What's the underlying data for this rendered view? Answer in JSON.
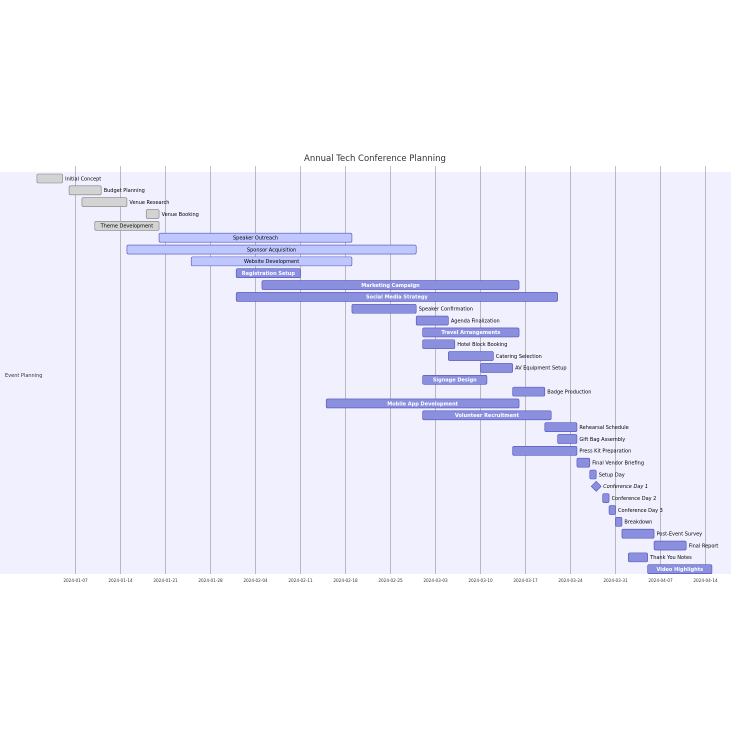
{
  "chart_data": {
    "type": "gantt",
    "title": "Annual Tech Conference Planning",
    "section": "Event Planning",
    "tick_labels": [
      "2024-01-07",
      "2024-01-14",
      "2024-01-21",
      "2024-01-28",
      "2024-02-04",
      "2024-02-11",
      "2024-02-18",
      "2024-02-25",
      "2024-03-03",
      "2024-03-10",
      "2024-03-17",
      "2024-03-24",
      "2024-03-31",
      "2024-04-07",
      "2024-04-14"
    ],
    "colors": {
      "done_fill": "#d3d3d3",
      "done_stroke": "#808080",
      "active_fill": "#bfc7ff",
      "active_stroke": "#534fbc",
      "task_fill": "#8a90dd",
      "task_stroke": "#534fbc",
      "crit_fill": "#8a90dd",
      "section_band": "#f0f0ff",
      "grid": "#808080",
      "inside_text_light": "#ffffff",
      "inside_text_dark": "#000000"
    },
    "tasks": [
      {
        "label": "Initial Concept",
        "start": "2024-01-01",
        "end": "2024-01-05",
        "status": "done"
      },
      {
        "label": "Budget Planning",
        "start": "2024-01-06",
        "end": "2024-01-11",
        "status": "done"
      },
      {
        "label": "Venue Research",
        "start": "2024-01-08",
        "end": "2024-01-15",
        "status": "done"
      },
      {
        "label": "Venue Booking",
        "start": "2024-01-18",
        "end": "2024-01-20",
        "status": "done"
      },
      {
        "label": "Theme Development",
        "start": "2024-01-10",
        "end": "2024-01-20",
        "status": "done"
      },
      {
        "label": "Speaker Outreach",
        "start": "2024-01-20",
        "end": "2024-02-19",
        "status": "active"
      },
      {
        "label": "Sponsor Acquisition",
        "start": "2024-01-15",
        "end": "2024-02-29",
        "status": "active"
      },
      {
        "label": "Website Development",
        "start": "2024-01-25",
        "end": "2024-02-19",
        "status": "active"
      },
      {
        "label": "Registration Setup",
        "start": "2024-02-01",
        "end": "2024-02-11",
        "status": "crit"
      },
      {
        "label": "Marketing Campaign",
        "start": "2024-02-05",
        "end": "2024-03-16",
        "status": "crit"
      },
      {
        "label": "Social Media Strategy",
        "start": "2024-02-01",
        "end": "2024-03-22",
        "status": "crit"
      },
      {
        "label": "Speaker Confirmation",
        "start": "2024-02-19",
        "end": "2024-02-29",
        "status": "crit"
      },
      {
        "label": "Agenda Finalization",
        "start": "2024-02-29",
        "end": "2024-03-05",
        "status": "task"
      },
      {
        "label": "Travel Arrangements",
        "start": "2024-03-01",
        "end": "2024-03-16",
        "status": "crit"
      },
      {
        "label": "Hotel Block Booking",
        "start": "2024-03-01",
        "end": "2024-03-06",
        "status": "task"
      },
      {
        "label": "Catering Selection",
        "start": "2024-03-05",
        "end": "2024-03-12",
        "status": "crit"
      },
      {
        "label": "AV Equipment Setup",
        "start": "2024-03-10",
        "end": "2024-03-15",
        "status": "task"
      },
      {
        "label": "Signage Design",
        "start": "2024-03-01",
        "end": "2024-03-11",
        "status": "crit"
      },
      {
        "label": "Badge Production",
        "start": "2024-03-15",
        "end": "2024-03-20",
        "status": "task"
      },
      {
        "label": "Mobile App Development",
        "start": "2024-02-15",
        "end": "2024-03-16",
        "status": "crit"
      },
      {
        "label": "Volunteer Recruitment",
        "start": "2024-03-01",
        "end": "2024-03-21",
        "status": "crit"
      },
      {
        "label": "Rehearsal Schedule",
        "start": "2024-03-20",
        "end": "2024-03-25",
        "status": "task"
      },
      {
        "label": "Gift Bag Assembly",
        "start": "2024-03-22",
        "end": "2024-03-25",
        "status": "task"
      },
      {
        "label": "Press Kit Preparation",
        "start": "2024-03-15",
        "end": "2024-03-25",
        "status": "crit"
      },
      {
        "label": "Final Vendor Briefing",
        "start": "2024-03-25",
        "end": "2024-03-27",
        "status": "task"
      },
      {
        "label": "Setup Day",
        "start": "2024-03-27",
        "end": "2024-03-28",
        "status": "task"
      },
      {
        "label": "Conference Day 1",
        "start": "2024-03-28",
        "end": "2024-03-28",
        "status": "milestone"
      },
      {
        "label": "Conference Day 2",
        "start": "2024-03-29",
        "end": "2024-03-30",
        "status": "task"
      },
      {
        "label": "Conference Day 3",
        "start": "2024-03-30",
        "end": "2024-03-31",
        "status": "task"
      },
      {
        "label": "Breakdown",
        "start": "2024-03-31",
        "end": "2024-04-01",
        "status": "task"
      },
      {
        "label": "Post-Event Survey",
        "start": "2024-04-01",
        "end": "2024-04-06",
        "status": "task"
      },
      {
        "label": "Final Report",
        "start": "2024-04-06",
        "end": "2024-04-11",
        "status": "crit"
      },
      {
        "label": "Thank You Notes",
        "start": "2024-04-02",
        "end": "2024-04-05",
        "status": "task"
      },
      {
        "label": "Video Highlights",
        "start": "2024-04-05",
        "end": "2024-04-15",
        "status": "crit"
      }
    ]
  }
}
